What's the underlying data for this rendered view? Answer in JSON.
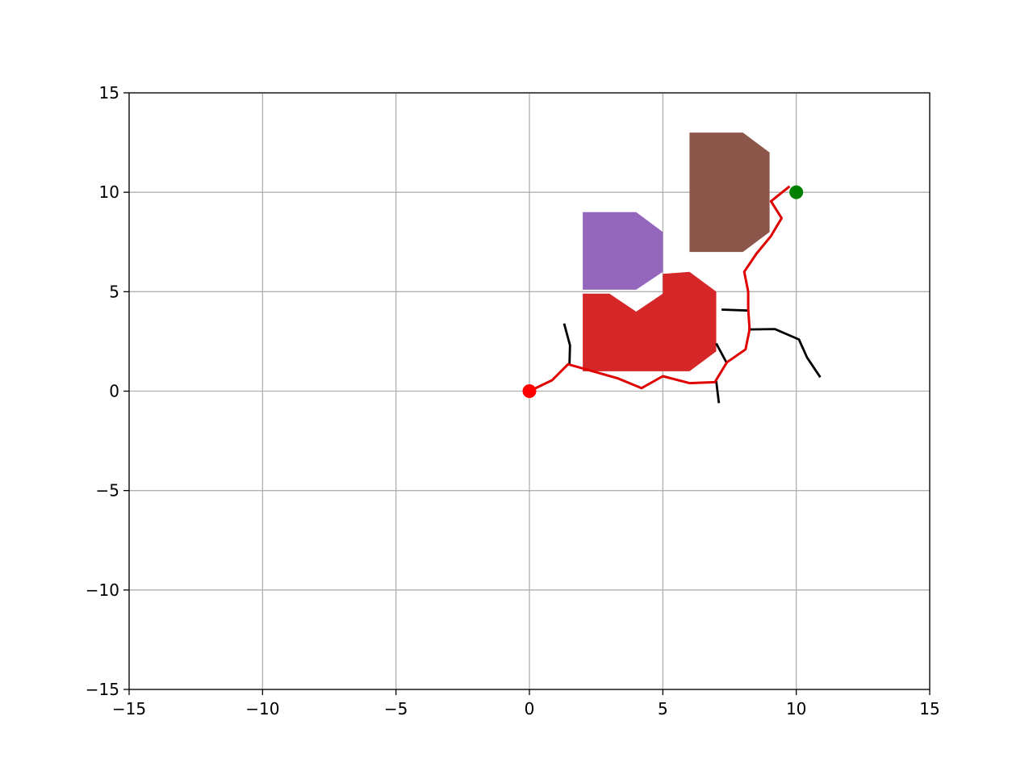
{
  "chart_data": {
    "type": "scatter",
    "title": "",
    "xlabel": "",
    "ylabel": "",
    "xlim": [
      -15,
      15
    ],
    "ylim": [
      -15,
      15
    ],
    "grid": true,
    "xticks": [
      -15,
      -10,
      -5,
      0,
      5,
      10,
      15
    ],
    "yticks": [
      -15,
      -10,
      -5,
      0,
      5,
      10,
      15
    ],
    "xtick_labels": [
      "−15",
      "−10",
      "−5",
      "0",
      "5",
      "10",
      "15"
    ],
    "ytick_labels": [
      "−15",
      "−10",
      "−5",
      "0",
      "5",
      "10",
      "15"
    ],
    "start_point": {
      "x": 0,
      "y": 0,
      "color": "#ff0000"
    },
    "goal_point": {
      "x": 10,
      "y": 10,
      "color": "#008000"
    },
    "obstacles": [
      {
        "color": "#9467bd",
        "points": [
          [
            2,
            5.1
          ],
          [
            2,
            9
          ],
          [
            4,
            9
          ],
          [
            5,
            8
          ],
          [
            5,
            6
          ],
          [
            4,
            5.1
          ]
        ]
      },
      {
        "color": "#d62728",
        "points": [
          [
            2,
            1
          ],
          [
            2,
            4.9
          ],
          [
            3,
            4.9
          ],
          [
            4,
            4
          ],
          [
            5,
            4.9
          ],
          [
            5,
            5.9
          ],
          [
            6,
            6
          ],
          [
            7,
            5
          ],
          [
            7,
            2
          ],
          [
            6,
            1
          ]
        ]
      },
      {
        "color": "#8c564b",
        "points": [
          [
            6,
            7
          ],
          [
            6,
            13
          ],
          [
            8,
            13
          ],
          [
            9,
            12
          ],
          [
            9,
            8
          ],
          [
            8,
            7
          ]
        ]
      }
    ],
    "tree_branches": [
      {
        "color": "#000000",
        "points": [
          [
            1.5,
            1.3
          ],
          [
            1.52,
            2.3
          ],
          [
            1.3,
            3.4
          ]
        ]
      },
      {
        "color": "#000000",
        "points": [
          [
            7.4,
            1.4
          ],
          [
            7.0,
            2.4
          ]
        ]
      },
      {
        "color": "#000000",
        "points": [
          [
            7.0,
            0.5
          ],
          [
            7.1,
            -0.6
          ]
        ]
      },
      {
        "color": "#000000",
        "points": [
          [
            7.2,
            4.1
          ],
          [
            8.2,
            4.05
          ]
        ]
      },
      {
        "color": "#000000",
        "points": [
          [
            8.2,
            3.1
          ],
          [
            9.2,
            3.12
          ],
          [
            10.1,
            2.6
          ],
          [
            10.4,
            1.7
          ],
          [
            10.9,
            0.7
          ]
        ]
      }
    ],
    "path": {
      "color": "#e00000",
      "points": [
        [
          0,
          0
        ],
        [
          0.85,
          0.55
        ],
        [
          1.45,
          1.35
        ],
        [
          2.5,
          0.95
        ],
        [
          3.3,
          0.65
        ],
        [
          4.2,
          0.15
        ],
        [
          5.0,
          0.75
        ],
        [
          6.0,
          0.4
        ],
        [
          6.95,
          0.45
        ],
        [
          7.4,
          1.45
        ],
        [
          8.1,
          2.1
        ],
        [
          8.25,
          3.1
        ],
        [
          8.2,
          4.15
        ],
        [
          8.2,
          5.0
        ],
        [
          8.05,
          6.0
        ],
        [
          8.5,
          6.9
        ],
        [
          9.05,
          7.8
        ],
        [
          9.45,
          8.7
        ],
        [
          9.05,
          9.55
        ],
        [
          9.75,
          10.3
        ]
      ]
    }
  }
}
